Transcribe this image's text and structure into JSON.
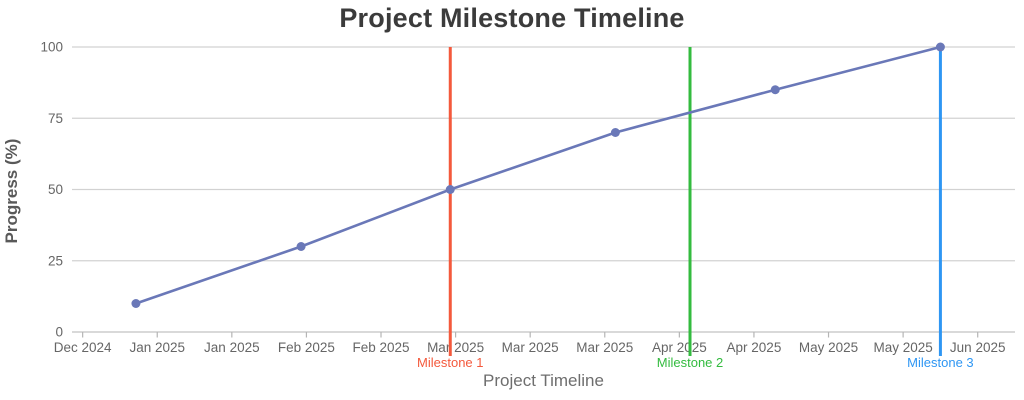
{
  "title": "Project Milestone Timeline",
  "chart_data": {
    "type": "line",
    "title": "Project Milestone Timeline",
    "xlabel": "Project Timeline",
    "ylabel": "Progress (%)",
    "ylim": [
      0,
      100
    ],
    "yticks": [
      0,
      25,
      50,
      75,
      100
    ],
    "ytick_labels": [
      "0",
      "25",
      "50",
      "75",
      "100"
    ],
    "x_domain": [
      "2024-12-20",
      "2025-06-15"
    ],
    "x_ticks": [
      {
        "date": "2024-12-22",
        "label": "Dec 2024"
      },
      {
        "date": "2025-01-05",
        "label": "Jan 2025"
      },
      {
        "date": "2025-01-19",
        "label": "Jan 2025"
      },
      {
        "date": "2025-02-02",
        "label": "Feb 2025"
      },
      {
        "date": "2025-02-16",
        "label": "Feb 2025"
      },
      {
        "date": "2025-03-02",
        "label": "Mar 2025"
      },
      {
        "date": "2025-03-16",
        "label": "Mar 2025"
      },
      {
        "date": "2025-03-30",
        "label": "Mar 2025"
      },
      {
        "date": "2025-04-13",
        "label": "Apr 2025"
      },
      {
        "date": "2025-04-27",
        "label": "Apr 2025"
      },
      {
        "date": "2025-05-11",
        "label": "May 2025"
      },
      {
        "date": "2025-05-25",
        "label": "May 2025"
      },
      {
        "date": "2025-06-08",
        "label": "Jun 2025"
      }
    ],
    "series": [
      {
        "name": "Progress",
        "color": "#6a78b8",
        "x": [
          "2025-01-01",
          "2025-02-01",
          "2025-03-01",
          "2025-04-01",
          "2025-05-01",
          "2025-06-01"
        ],
        "values": [
          10,
          30,
          50,
          70,
          85,
          100
        ]
      }
    ],
    "milestones": [
      {
        "label": "Milestone 1",
        "date": "2025-03-01",
        "color": "#f4593c"
      },
      {
        "label": "Milestone 2",
        "date": "2025-04-15",
        "color": "#33bb3f"
      },
      {
        "label": "Milestone 3",
        "date": "2025-06-01",
        "color": "#2e96f3"
      }
    ],
    "grid": true,
    "legend": false,
    "style": {
      "grid_color": "#d2d2d2",
      "axis_color": "#c2c2c2",
      "tick_mark_color": "#b5b5b5",
      "tick_text_color": "#666666",
      "title_color": "#3b3b3b",
      "marker_radius": 4.5,
      "line_width": 2.6,
      "milestone_line_width": 3
    }
  }
}
